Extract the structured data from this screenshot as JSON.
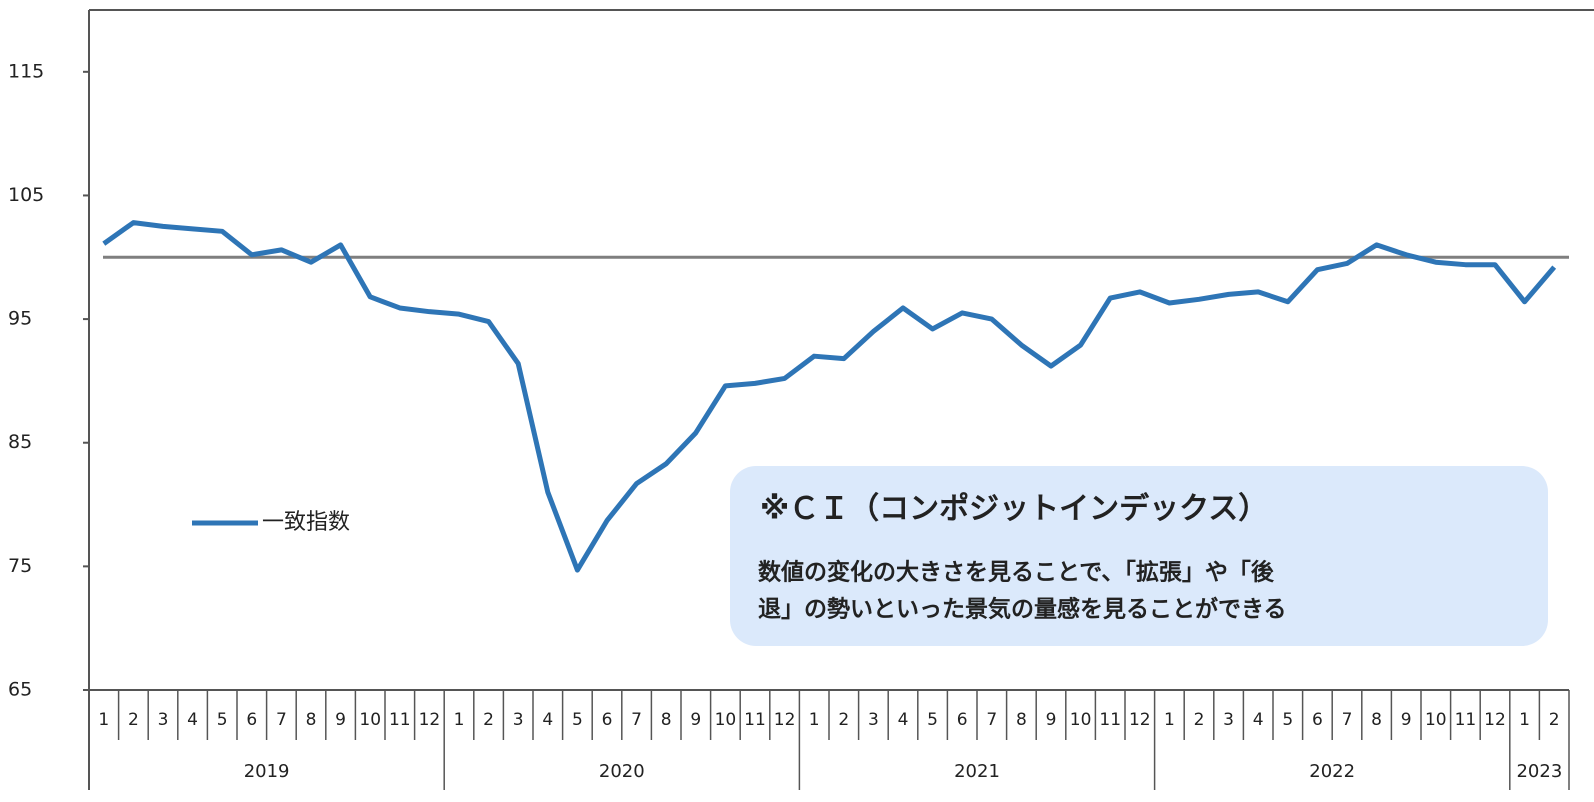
{
  "chart_data": {
    "type": "line",
    "categories": [
      "1",
      "2",
      "3",
      "4",
      "5",
      "6",
      "7",
      "8",
      "9",
      "10",
      "11",
      "12",
      "1",
      "2",
      "3",
      "4",
      "5",
      "6",
      "7",
      "8",
      "9",
      "10",
      "11",
      "12",
      "1",
      "2",
      "3",
      "4",
      "5",
      "6",
      "7",
      "8",
      "9",
      "10",
      "11",
      "12",
      "1",
      "2",
      "3",
      "4",
      "5",
      "6",
      "7",
      "8",
      "9",
      "10",
      "11",
      "12",
      "1",
      "2"
    ],
    "years": [
      "2019",
      "2020",
      "2021",
      "2022",
      "2023"
    ],
    "series": [
      {
        "name": "一致指数",
        "color": "#2e75b6",
        "values": [
          101.1,
          102.8,
          102.5,
          102.3,
          102.1,
          100.2,
          100.6,
          99.6,
          101.0,
          96.8,
          95.9,
          95.6,
          95.4,
          94.8,
          91.4,
          81.0,
          74.7,
          78.7,
          81.7,
          83.3,
          85.8,
          89.6,
          89.8,
          90.2,
          92.0,
          91.8,
          94.0,
          95.9,
          94.2,
          95.5,
          95.0,
          92.9,
          91.2,
          92.9,
          96.7,
          97.2,
          96.3,
          96.6,
          97.0,
          97.2,
          96.4,
          99.0,
          99.5,
          101.0,
          100.2,
          99.6,
          99.4,
          99.4,
          96.4,
          99.2
        ]
      }
    ],
    "ylim": [
      65,
      120
    ],
    "yticks": [
      65,
      75,
      85,
      95,
      105,
      115
    ],
    "reference_line": {
      "value": 100,
      "color": "#7f7f7f"
    },
    "legend": "left",
    "annotation": {
      "title": "※ＣＩ（コンポジットインデックス）",
      "lines": [
        "数値の変化の大きさを見ることで、「拡張」や「後",
        "退」の勢いといった景気の量感を見ることができる"
      ],
      "color": "#1f5fb4",
      "background": "#dbe9fb"
    }
  }
}
